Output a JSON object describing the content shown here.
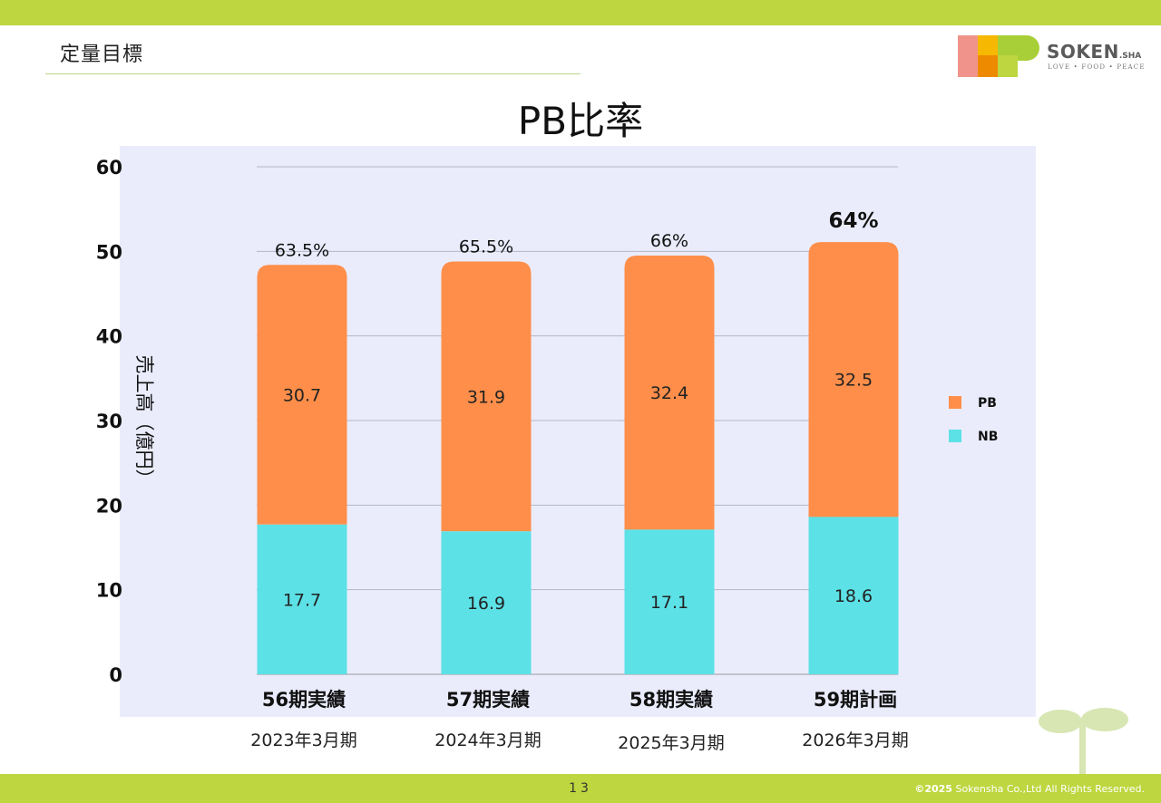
{
  "header": {
    "section_title": "定量目標",
    "logo_text": "SOKEN",
    "logo_sub": ".SHA",
    "logo_tagline": "LOVE • FOOD • PEACE"
  },
  "colors": {
    "band": "#bed63f",
    "pb": "#fe8e4a",
    "nb": "#5ce1e6",
    "chart_bg": "#eaecfc"
  },
  "chart_data": {
    "type": "bar",
    "stacked": true,
    "title": "PB比率",
    "ylabel": "売上高（億円）",
    "xlabel": "",
    "ylim": [
      0,
      60
    ],
    "yticks": [
      0,
      10,
      20,
      30,
      40,
      50,
      60
    ],
    "grid": true,
    "legend": "right",
    "categories": [
      "56期実績",
      "57期実績",
      "58期実績",
      "59期計画"
    ],
    "periods": [
      "2023年3月期",
      "2024年3月期",
      "2025年3月期",
      "2026年3月期"
    ],
    "series": [
      {
        "name": "NB",
        "values": [
          17.7,
          16.9,
          17.1,
          18.6
        ]
      },
      {
        "name": "PB",
        "values": [
          30.7,
          31.9,
          32.4,
          32.5
        ]
      }
    ],
    "ratio_labels": [
      "63.5%",
      "65.5%",
      "66%",
      "64%"
    ]
  },
  "footer": {
    "page_number": "13",
    "copyright_year": "©2025",
    "copyright_text": "Sokensha Co.,Ltd All Rights Reserved."
  }
}
